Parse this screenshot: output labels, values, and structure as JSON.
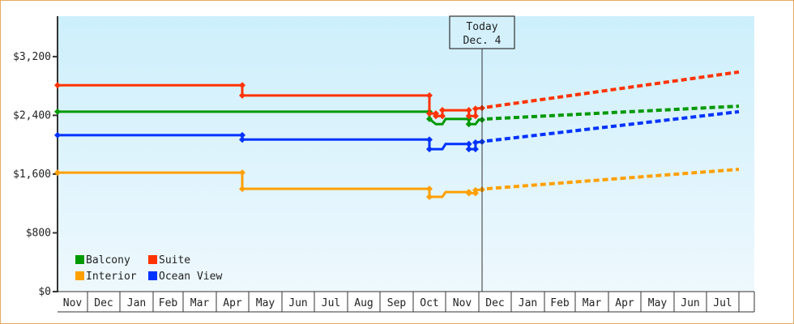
{
  "chart_data": {
    "type": "line",
    "title": "",
    "xlabel": "",
    "ylabel": "",
    "ylim": [
      0,
      3750
    ],
    "yticks": [
      0,
      800,
      1600,
      2400,
      3200
    ],
    "ytick_labels": [
      "$0",
      "$800",
      "$1,600",
      "$2,400",
      "$3,200"
    ],
    "x_month_labels": [
      "Nov",
      "Dec",
      "Jan",
      "Feb",
      "Mar",
      "Apr",
      "May",
      "Jun",
      "Jul",
      "Aug",
      "Sep",
      "Oct",
      "Nov",
      "Dec",
      "Jan",
      "Feb",
      "Mar",
      "Apr",
      "May",
      "Jun",
      "Jul"
    ],
    "today_marker": {
      "line1": "Today",
      "line2": "Dec. 4",
      "month_index": 13.1
    },
    "legend_position": "bottom-left inside plot",
    "grid": false,
    "series": [
      {
        "name": "Balcony",
        "color": "#009900",
        "history": [
          [
            0,
            2450
          ],
          [
            5.8,
            2450
          ],
          [
            11.5,
            2450
          ],
          [
            11.5,
            2350
          ],
          [
            11.7,
            2280
          ],
          [
            11.9,
            2280
          ],
          [
            12.0,
            2350
          ],
          [
            12.7,
            2350
          ],
          [
            12.7,
            2280
          ],
          [
            12.9,
            2280
          ],
          [
            13.0,
            2340
          ],
          [
            13.1,
            2340
          ]
        ],
        "projection": [
          [
            13.1,
            2340
          ],
          [
            21.0,
            2525
          ]
        ]
      },
      {
        "name": "Suite",
        "color": "#ff3300",
        "history": [
          [
            0,
            2810
          ],
          [
            5.8,
            2810
          ],
          [
            5.8,
            2670
          ],
          [
            11.5,
            2670
          ],
          [
            11.5,
            2425
          ],
          [
            11.7,
            2425
          ],
          [
            11.7,
            2390
          ],
          [
            11.9,
            2390
          ],
          [
            11.9,
            2470
          ],
          [
            12.7,
            2470
          ],
          [
            12.7,
            2390
          ],
          [
            12.9,
            2390
          ],
          [
            12.9,
            2490
          ],
          [
            13.1,
            2500
          ]
        ],
        "projection": [
          [
            13.1,
            2500
          ],
          [
            21.0,
            2990
          ]
        ]
      },
      {
        "name": "Interior",
        "color": "#ffa000",
        "history": [
          [
            0,
            1620
          ],
          [
            5.8,
            1620
          ],
          [
            5.8,
            1400
          ],
          [
            11.5,
            1400
          ],
          [
            11.5,
            1290
          ],
          [
            11.9,
            1290
          ],
          [
            12.0,
            1355
          ],
          [
            12.7,
            1355
          ],
          [
            12.7,
            1340
          ],
          [
            12.9,
            1340
          ],
          [
            12.9,
            1380
          ],
          [
            13.1,
            1390
          ]
        ],
        "projection": [
          [
            13.1,
            1390
          ],
          [
            21.0,
            1665
          ]
        ]
      },
      {
        "name": "Ocean View",
        "color": "#0033ff",
        "history": [
          [
            0,
            2130
          ],
          [
            5.8,
            2130
          ],
          [
            5.8,
            2070
          ],
          [
            11.5,
            2070
          ],
          [
            11.5,
            1940
          ],
          [
            11.9,
            1940
          ],
          [
            12.0,
            2010
          ],
          [
            12.7,
            2010
          ],
          [
            12.7,
            1940
          ],
          [
            12.9,
            1940
          ],
          [
            12.9,
            2030
          ],
          [
            13.1,
            2040
          ]
        ],
        "projection": [
          [
            13.1,
            2040
          ],
          [
            21.0,
            2450
          ]
        ]
      }
    ]
  },
  "legend": [
    {
      "label": "Balcony",
      "color": "#009900"
    },
    {
      "label": "Suite",
      "color": "#ff3300"
    },
    {
      "label": "Interior",
      "color": "#ffa000"
    },
    {
      "label": "Ocean View",
      "color": "#0033ff"
    }
  ],
  "colors": {
    "frame_border": "#e8a961",
    "plot_bg_top": "#cdeffc",
    "plot_bg_bottom": "#eef8fd",
    "axis": "#333333"
  }
}
